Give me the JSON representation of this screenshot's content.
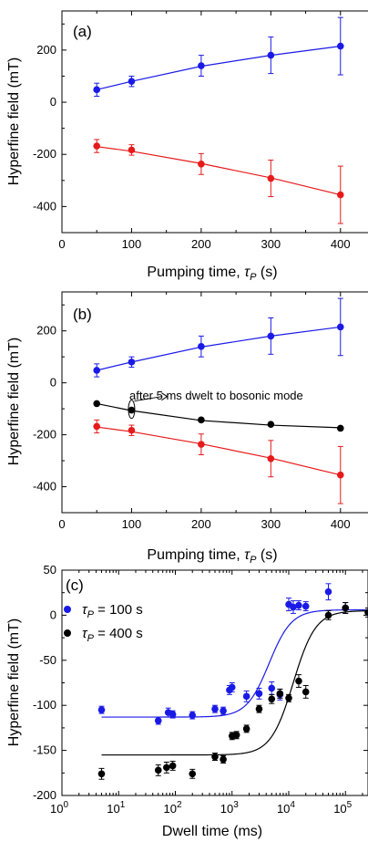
{
  "colors": {
    "blue": "#1a1ae6",
    "red": "#e61a1a",
    "black": "#000000"
  },
  "chart_data": [
    {
      "type": "scatter",
      "panel_label": "(a)",
      "xlabel_prefix": "Pumping time, ",
      "xlabel_symbol": "τ",
      "xlabel_sub": "P",
      "xlabel_suffix": " (s)",
      "ylabel": "Hyperfine field (mT)",
      "xlim": [
        0,
        450
      ],
      "ylim": [
        -500,
        350
      ],
      "xticks": [
        0,
        100,
        200,
        300,
        400
      ],
      "yticks": [
        -400,
        -200,
        0,
        200
      ],
      "xtick_labels": [
        "0",
        "100",
        "200",
        "300",
        "400"
      ],
      "ytick_labels": [
        "-400",
        "-200",
        "0",
        "200"
      ],
      "series": [
        {
          "color": "blue",
          "x": [
            50,
            100,
            200,
            300,
            400
          ],
          "y": [
            48,
            80,
            140,
            180,
            215
          ],
          "err": [
            25,
            20,
            40,
            70,
            110
          ],
          "fit": [
            [
              50,
              48
            ],
            [
              100,
              80
            ],
            [
              200,
              138
            ],
            [
              300,
              180
            ],
            [
              400,
              215
            ]
          ]
        },
        {
          "color": "red",
          "x": [
            50,
            100,
            200,
            300,
            400
          ],
          "y": [
            -168,
            -183,
            -237,
            -292,
            -355
          ],
          "err": [
            25,
            20,
            40,
            70,
            110
          ],
          "fit": [
            [
              50,
              -170
            ],
            [
              100,
              -188
            ],
            [
              200,
              -235
            ],
            [
              300,
              -290
            ],
            [
              400,
              -355
            ]
          ]
        }
      ]
    },
    {
      "type": "scatter",
      "panel_label": "(b)",
      "xlabel_prefix": "Pumping time, ",
      "xlabel_symbol": "τ",
      "xlabel_sub": "P",
      "xlabel_suffix": " (s)",
      "ylabel": "Hyperfine field (mT)",
      "xlim": [
        0,
        450
      ],
      "ylim": [
        -500,
        350
      ],
      "xticks": [
        0,
        100,
        200,
        300,
        400
      ],
      "yticks": [
        -400,
        -200,
        0,
        200
      ],
      "xtick_labels": [
        "0",
        "100",
        "200",
        "300",
        "400"
      ],
      "ytick_labels": [
        "-400",
        "-200",
        "0",
        "200"
      ],
      "annotation": "after 5 ms dwelt to bosonic mode",
      "series": [
        {
          "color": "blue",
          "x": [
            50,
            100,
            200,
            300,
            400
          ],
          "y": [
            48,
            80,
            140,
            180,
            215
          ],
          "err": [
            25,
            20,
            40,
            70,
            110
          ],
          "fit": [
            [
              50,
              48
            ],
            [
              100,
              80
            ],
            [
              200,
              138
            ],
            [
              300,
              180
            ],
            [
              400,
              215
            ]
          ]
        },
        {
          "color": "black",
          "x": [
            50,
            100,
            200,
            300,
            400
          ],
          "y": [
            -80,
            -105,
            -143,
            -160,
            -175
          ],
          "err": [
            0,
            0,
            0,
            0,
            0
          ],
          "fit": [
            [
              50,
              -80
            ],
            [
              100,
              -107
            ],
            [
              200,
              -145
            ],
            [
              300,
              -163
            ],
            [
              400,
              -173
            ]
          ]
        },
        {
          "color": "red",
          "x": [
            50,
            100,
            200,
            300,
            400
          ],
          "y": [
            -168,
            -183,
            -237,
            -292,
            -355
          ],
          "err": [
            25,
            20,
            40,
            70,
            110
          ],
          "fit": [
            [
              50,
              -170
            ],
            [
              100,
              -188
            ],
            [
              200,
              -235
            ],
            [
              300,
              -290
            ],
            [
              400,
              -355
            ]
          ]
        }
      ]
    },
    {
      "type": "scatter",
      "panel_label": "(c)",
      "xlabel": "Dwell time (ms)",
      "ylabel": "Hyperfine field (mT)",
      "xscale": "log",
      "xlim": [
        1,
        250000
      ],
      "ylim": [
        -200,
        50
      ],
      "xticks": [
        1,
        10,
        100,
        1000,
        10000,
        100000
      ],
      "xtick_base": "10",
      "xtick_exponents": [
        "0",
        "1",
        "2",
        "3",
        "4",
        "5"
      ],
      "yticks": [
        -200,
        -150,
        -100,
        -50,
        0,
        50
      ],
      "ytick_labels": [
        "-200",
        "-150",
        "-100",
        "-50",
        "0",
        "50"
      ],
      "legend_position": "top-left",
      "series": [
        {
          "name_prefix": "τ",
          "name_sub": "P",
          "name_suffix": " = 100 s",
          "color": "blue",
          "x": [
            5,
            50,
            75,
            90,
            200,
            500,
            700,
            900,
            1000,
            1800,
            3000,
            5000,
            7000,
            10000,
            12000,
            15000,
            20000,
            50000,
            100000
          ],
          "y": [
            -105,
            -117,
            -108,
            -110,
            -111,
            -104,
            -106,
            -83,
            -80,
            -90,
            -87,
            -81,
            -88,
            12,
            9,
            11,
            10,
            26,
            8
          ],
          "err": [
            4,
            4,
            5,
            4,
            4,
            4,
            4,
            5,
            5,
            6,
            6,
            7,
            6,
            7,
            7,
            5,
            5,
            9,
            6
          ],
          "fit": {
            "lower": -113,
            "upper": 6,
            "x0": 4500,
            "slope": 2.2
          }
        },
        {
          "name_prefix": "τ",
          "name_sub": "P",
          "name_suffix": " = 400 s",
          "color": "black",
          "x": [
            5,
            50,
            70,
            90,
            200,
            500,
            700,
            1000,
            1200,
            1800,
            3000,
            5000,
            7000,
            10000,
            15000,
            20000,
            50000,
            100000,
            250000
          ],
          "y": [
            -176,
            -172,
            -169,
            -167,
            -176,
            -157,
            -160,
            -134,
            -133,
            -126,
            -104,
            -93,
            -87,
            -92,
            -73,
            -85,
            0,
            8,
            3
          ],
          "err": [
            6,
            6,
            6,
            5,
            5,
            4,
            4,
            4,
            4,
            4,
            4,
            5,
            5,
            4,
            7,
            7,
            5,
            6,
            5
          ],
          "fit": {
            "lower": -155,
            "upper": 5,
            "x0": 12000,
            "slope": 2.2
          }
        }
      ]
    }
  ]
}
